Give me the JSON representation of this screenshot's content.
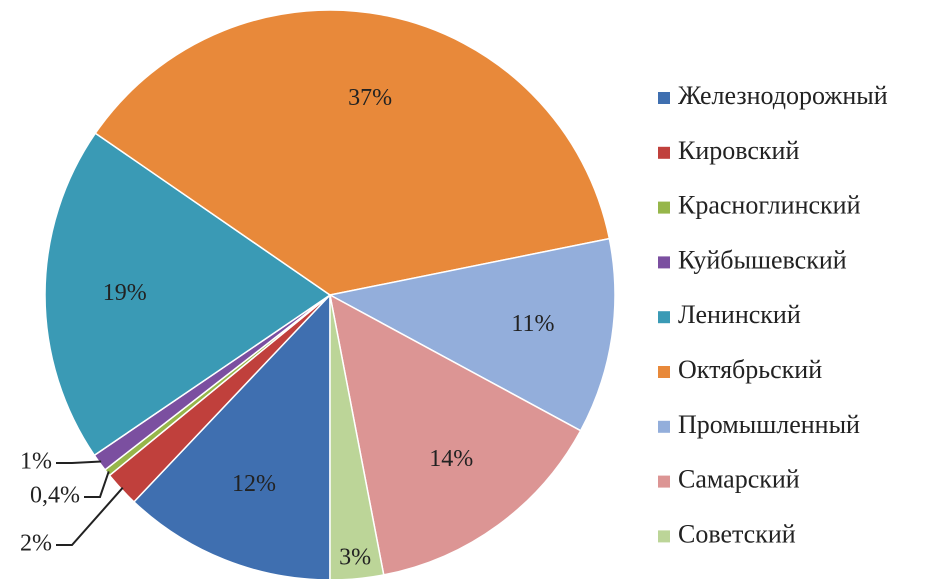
{
  "chart_data": {
    "type": "pie",
    "categories": [
      "Железнодорожный",
      "Кировский",
      "Красноглинский",
      "Куйбышевский",
      "Ленинский",
      "Октябрьский",
      "Промышленный",
      "Самарский",
      "Советский"
    ],
    "values": [
      12,
      2,
      0.4,
      1,
      19,
      37,
      11,
      14,
      3
    ],
    "value_labels": [
      "12%",
      "2%",
      "0,4%",
      "1%",
      "19%",
      "37%",
      "11%",
      "14%",
      "3%"
    ],
    "colors": [
      "#3f6fb0",
      "#c0403c",
      "#96b64a",
      "#7b4fa0",
      "#3a9ab5",
      "#e8893a",
      "#93aedb",
      "#dc9594",
      "#bcd598"
    ],
    "legend": "right"
  }
}
